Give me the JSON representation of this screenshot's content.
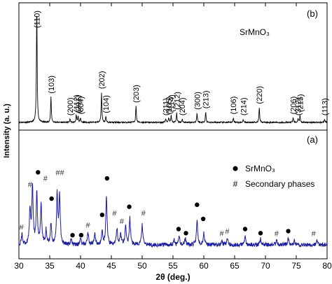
{
  "chart_data": {
    "type": "line",
    "xlabel": "2θ (deg.)",
    "ylabel": "Intensity (a. u.)",
    "xlim": [
      30,
      80
    ],
    "x_ticks": [
      30,
      35,
      40,
      45,
      50,
      55,
      60,
      65,
      70,
      75,
      80
    ],
    "y_ticks_shown": false,
    "grid": false,
    "panels": [
      {
        "id": "b",
        "label": "(b)",
        "name": "SrMnO₃",
        "color": "#000000",
        "peaks": [
          {
            "x": 32.9,
            "h": 1.0,
            "label": "(110)"
          },
          {
            "x": 35.2,
            "h": 0.22,
            "label": "(103)"
          },
          {
            "x": 38.3,
            "h": 0.03,
            "label": "(200)"
          },
          {
            "x": 39.3,
            "h": 0.06,
            "label": "(112)"
          },
          {
            "x": 39.6,
            "h": 0.05,
            "label": "(201)"
          },
          {
            "x": 40.0,
            "h": 0.04,
            "label": "(004)"
          },
          {
            "x": 43.4,
            "h": 0.26,
            "label": "(202)"
          },
          {
            "x": 44.1,
            "h": 0.05,
            "label": "(104)"
          },
          {
            "x": 49.0,
            "h": 0.14,
            "label": "(203)"
          },
          {
            "x": 53.8,
            "h": 0.03,
            "label": "(211)"
          },
          {
            "x": 54.3,
            "h": 0.04,
            "label": "(105)"
          },
          {
            "x": 54.7,
            "h": 0.06,
            "label": "(114)"
          },
          {
            "x": 55.6,
            "h": 0.08,
            "label": "(212)"
          },
          {
            "x": 56.5,
            "h": 0.03,
            "label": "(204)"
          },
          {
            "x": 58.9,
            "h": 0.08,
            "label": "(300)"
          },
          {
            "x": 60.3,
            "h": 0.09,
            "label": "(213)"
          },
          {
            "x": 64.8,
            "h": 0.04,
            "label": "(106)"
          },
          {
            "x": 66.4,
            "h": 0.03,
            "label": "(214)"
          },
          {
            "x": 69.0,
            "h": 0.13,
            "label": "(220)"
          },
          {
            "x": 74.5,
            "h": 0.04,
            "label": "(206)"
          },
          {
            "x": 75.3,
            "h": 0.03,
            "label": "(312)"
          },
          {
            "x": 75.6,
            "h": 0.06,
            "label": "(215)"
          },
          {
            "x": 79.6,
            "h": 0.03,
            "label": "(113)"
          }
        ]
      },
      {
        "id": "a",
        "label": "(a)",
        "color": "#1c1c9e",
        "peaks": [
          {
            "x": 30.5,
            "h": 0.05
          },
          {
            "x": 31.8,
            "h": 0.17
          },
          {
            "x": 32.2,
            "h": 0.29
          },
          {
            "x": 32.9,
            "h": 0.25
          },
          {
            "x": 33.6,
            "h": 0.2
          },
          {
            "x": 34.4,
            "h": 0.07
          },
          {
            "x": 35.2,
            "h": 0.1
          },
          {
            "x": 36.2,
            "h": 0.25
          },
          {
            "x": 36.6,
            "h": 0.24
          },
          {
            "x": 38.5,
            "h": 0.03
          },
          {
            "x": 40.0,
            "h": 0.03
          },
          {
            "x": 41.2,
            "h": 0.06
          },
          {
            "x": 42.3,
            "h": 0.06
          },
          {
            "x": 43.5,
            "h": 0.06
          },
          {
            "x": 44.2,
            "h": 0.24
          },
          {
            "x": 45.9,
            "h": 0.08
          },
          {
            "x": 46.5,
            "h": 0.06
          },
          {
            "x": 47.3,
            "h": 0.09
          },
          {
            "x": 48.0,
            "h": 0.13
          },
          {
            "x": 50.0,
            "h": 0.1
          },
          {
            "x": 55.2,
            "h": 0.02
          },
          {
            "x": 56.0,
            "h": 0.04
          },
          {
            "x": 57.0,
            "h": 0.03
          },
          {
            "x": 58.9,
            "h": 0.12
          },
          {
            "x": 60.0,
            "h": 0.06
          },
          {
            "x": 62.9,
            "h": 0.02
          },
          {
            "x": 63.8,
            "h": 0.03
          },
          {
            "x": 66.7,
            "h": 0.04
          },
          {
            "x": 69.2,
            "h": 0.03
          },
          {
            "x": 71.8,
            "h": 0.02
          },
          {
            "x": 73.7,
            "h": 0.03
          },
          {
            "x": 74.7,
            "h": 0.02
          },
          {
            "x": 78.3,
            "h": 0.02
          }
        ],
        "markers": [
          {
            "x": 30.4,
            "h": 0.06,
            "type": "#"
          },
          {
            "x": 31.8,
            "h": 0.27,
            "type": "#"
          },
          {
            "x": 33.1,
            "h": 0.33,
            "type": "●"
          },
          {
            "x": 34.3,
            "h": 0.3,
            "type": "#"
          },
          {
            "x": 35.3,
            "h": 0.2,
            "type": "●"
          },
          {
            "x": 36.3,
            "h": 0.33,
            "type": "#"
          },
          {
            "x": 37.0,
            "h": 0.33,
            "type": "#"
          },
          {
            "x": 38.7,
            "h": 0.02,
            "type": "●"
          },
          {
            "x": 40.1,
            "h": 0.02,
            "type": "●"
          },
          {
            "x": 41.2,
            "h": 0.07,
            "type": "#"
          },
          {
            "x": 43.5,
            "h": 0.12,
            "type": "●"
          },
          {
            "x": 44.3,
            "h": 0.3,
            "type": "●"
          },
          {
            "x": 45.5,
            "h": 0.13,
            "type": "#"
          },
          {
            "x": 46.7,
            "h": 0.09,
            "type": "#"
          },
          {
            "x": 47.9,
            "h": 0.16,
            "type": "●"
          },
          {
            "x": 50.2,
            "h": 0.13,
            "type": "#"
          },
          {
            "x": 55.9,
            "h": 0.05,
            "type": "●"
          },
          {
            "x": 57.1,
            "h": 0.03,
            "type": "●"
          },
          {
            "x": 58.9,
            "h": 0.17,
            "type": "●"
          },
          {
            "x": 59.9,
            "h": 0.1,
            "type": "●"
          },
          {
            "x": 62.9,
            "h": 0.03,
            "type": "#"
          },
          {
            "x": 63.8,
            "h": 0.04,
            "type": "#"
          },
          {
            "x": 66.7,
            "h": 0.05,
            "type": "●"
          },
          {
            "x": 69.2,
            "h": 0.03,
            "type": "●"
          },
          {
            "x": 71.8,
            "h": 0.03,
            "type": "#"
          },
          {
            "x": 73.7,
            "h": 0.04,
            "type": "●"
          },
          {
            "x": 77.8,
            "h": 0.03,
            "type": "#"
          }
        ]
      }
    ],
    "legend": {
      "placement": "right, lower panel",
      "entries": [
        {
          "symbol": "●",
          "label": "SrMnO₃"
        },
        {
          "symbol": "#",
          "label": "Secondary phases"
        }
      ]
    }
  }
}
